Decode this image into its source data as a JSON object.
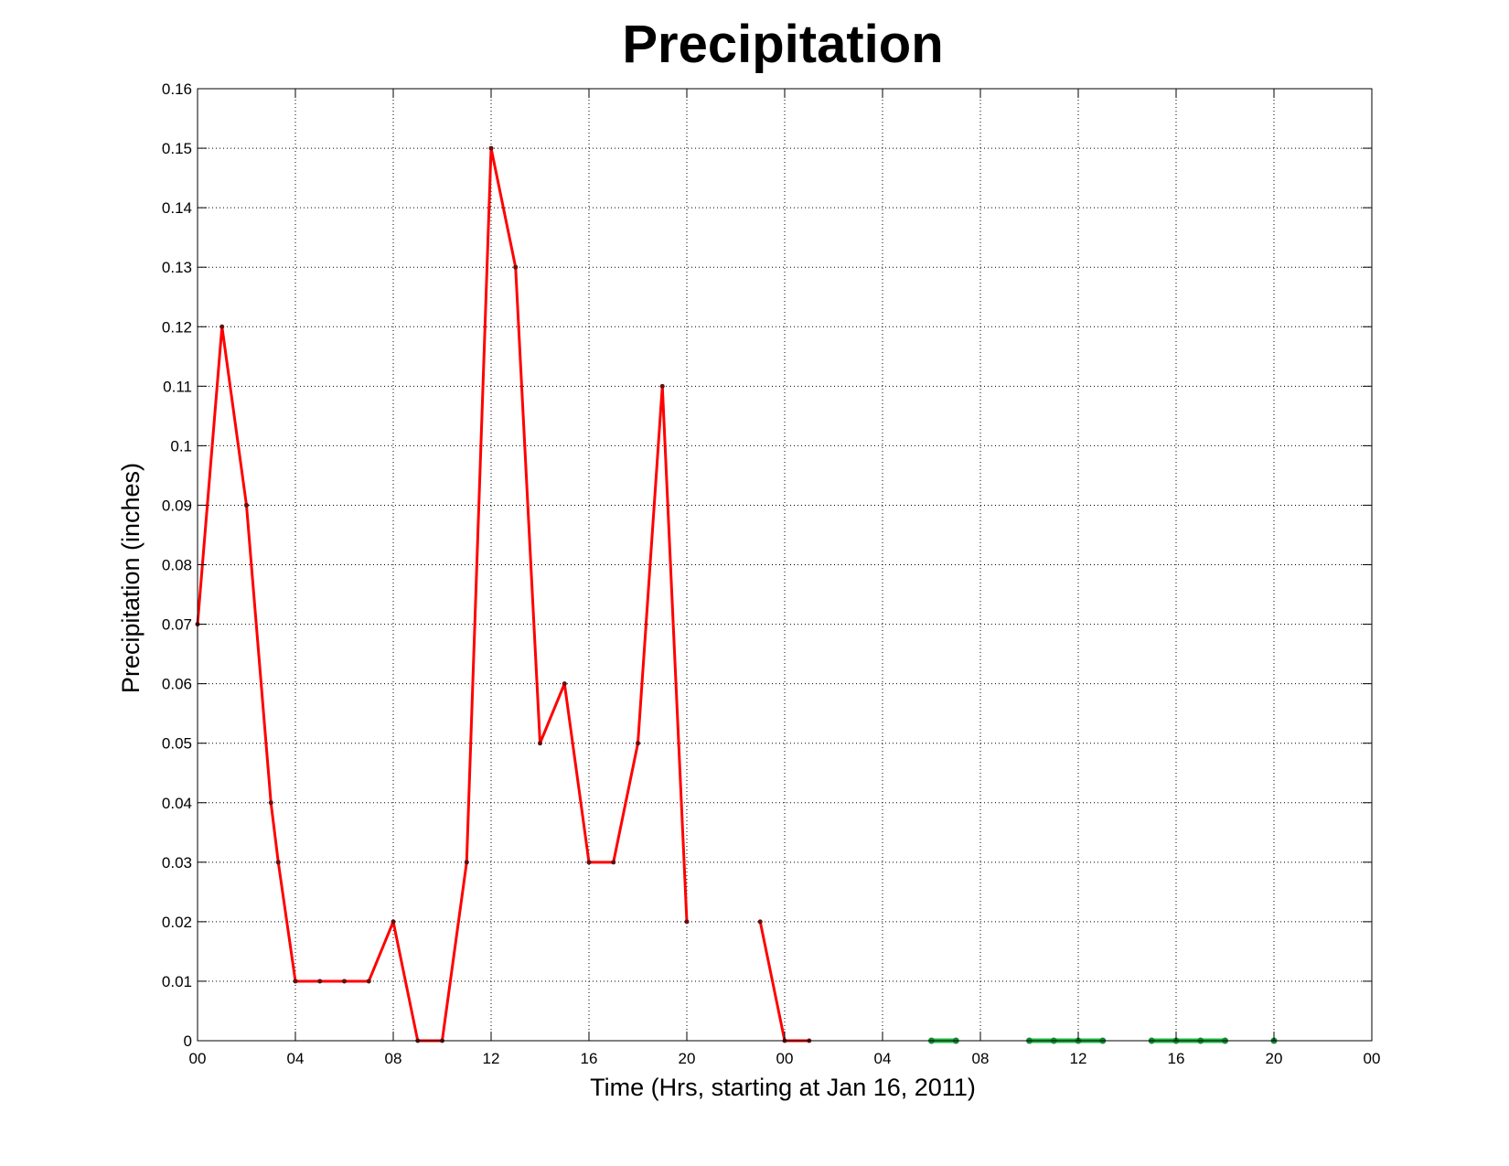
{
  "chart_data": {
    "type": "line",
    "title": "Precipitation",
    "xlabel": "Time (Hrs, starting at Jan 16, 2011)",
    "ylabel": "Precipitation (inches)",
    "xlim": [
      0,
      48
    ],
    "ylim": [
      0,
      0.16
    ],
    "grid": true,
    "x_tick_labels": [
      "00",
      "04",
      "08",
      "12",
      "16",
      "20",
      "00",
      "04",
      "08",
      "12",
      "16",
      "20",
      "00"
    ],
    "y_tick_labels": [
      "0",
      "0.01",
      "0.02",
      "0.03",
      "0.04",
      "0.05",
      "0.06",
      "0.07",
      "0.08",
      "0.09",
      "0.1",
      "0.11",
      "0.12",
      "0.13",
      "0.14",
      "0.15",
      "0.16"
    ],
    "series": [
      {
        "color": "#ff0000",
        "x": [
          0,
          1,
          2,
          3,
          3.3,
          4,
          5,
          6,
          7,
          8,
          9,
          10,
          11,
          12,
          13,
          14,
          15,
          16,
          17,
          18,
          19,
          20,
          21,
          22,
          23,
          24,
          25
        ],
        "values": [
          0.07,
          0.12,
          0.09,
          0.04,
          0.03,
          0.01,
          0.01,
          0.01,
          0.01,
          0.02,
          0,
          0,
          0.03,
          0.15,
          0.13,
          0.05,
          0.06,
          0.03,
          0.03,
          0.05,
          0.11,
          0.02,
          null,
          null,
          0.02,
          0,
          0
        ]
      },
      {
        "color": "#22bb44",
        "x": [
          30,
          31,
          32,
          33,
          34,
          35,
          36,
          37,
          38,
          39,
          40,
          41,
          42,
          43,
          44
        ],
        "values": [
          0,
          0,
          null,
          null,
          0,
          0,
          0,
          0,
          null,
          0,
          0,
          0,
          0,
          null,
          0
        ]
      }
    ]
  }
}
